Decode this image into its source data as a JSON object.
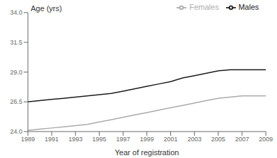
{
  "chart_data": {
    "type": "line",
    "x_label": "Year of registration",
    "y_label": "Age (yrs)",
    "x": [
      1989,
      1990,
      1991,
      1992,
      1993,
      1994,
      1995,
      1996,
      1997,
      1998,
      1999,
      2000,
      2001,
      2002,
      2003,
      2004,
      2005,
      2006,
      2007,
      2008,
      2009
    ],
    "series": [
      {
        "name": "Males",
        "color": "#1a1a1a",
        "values": [
          26.5,
          26.6,
          26.7,
          26.8,
          26.9,
          27.0,
          27.1,
          27.2,
          27.4,
          27.6,
          27.8,
          28.0,
          28.2,
          28.5,
          28.7,
          28.9,
          29.1,
          29.2,
          29.2,
          29.2,
          29.2
        ]
      },
      {
        "name": "Females",
        "color": "#aaaaaa",
        "values": [
          24.1,
          24.2,
          24.3,
          24.4,
          24.5,
          24.6,
          24.8,
          25.0,
          25.2,
          25.4,
          25.6,
          25.8,
          26.0,
          26.2,
          26.4,
          26.6,
          26.8,
          26.9,
          27.0,
          27.0,
          27.0
        ]
      }
    ],
    "xlim": [
      1989,
      2009
    ],
    "xticks": [
      1989,
      1991,
      1993,
      1995,
      1997,
      1999,
      2001,
      2003,
      2005,
      2007,
      2009
    ],
    "ylim": [
      24.0,
      34.0
    ],
    "yticks": [
      {
        "value": 24,
        "label": "24.0"
      },
      26.5,
      {
        "value": 29,
        "label": "29.0"
      },
      31.5,
      {
        "value": 34,
        "label": "34.0"
      }
    ],
    "grid": false,
    "legend": "upper right"
  }
}
